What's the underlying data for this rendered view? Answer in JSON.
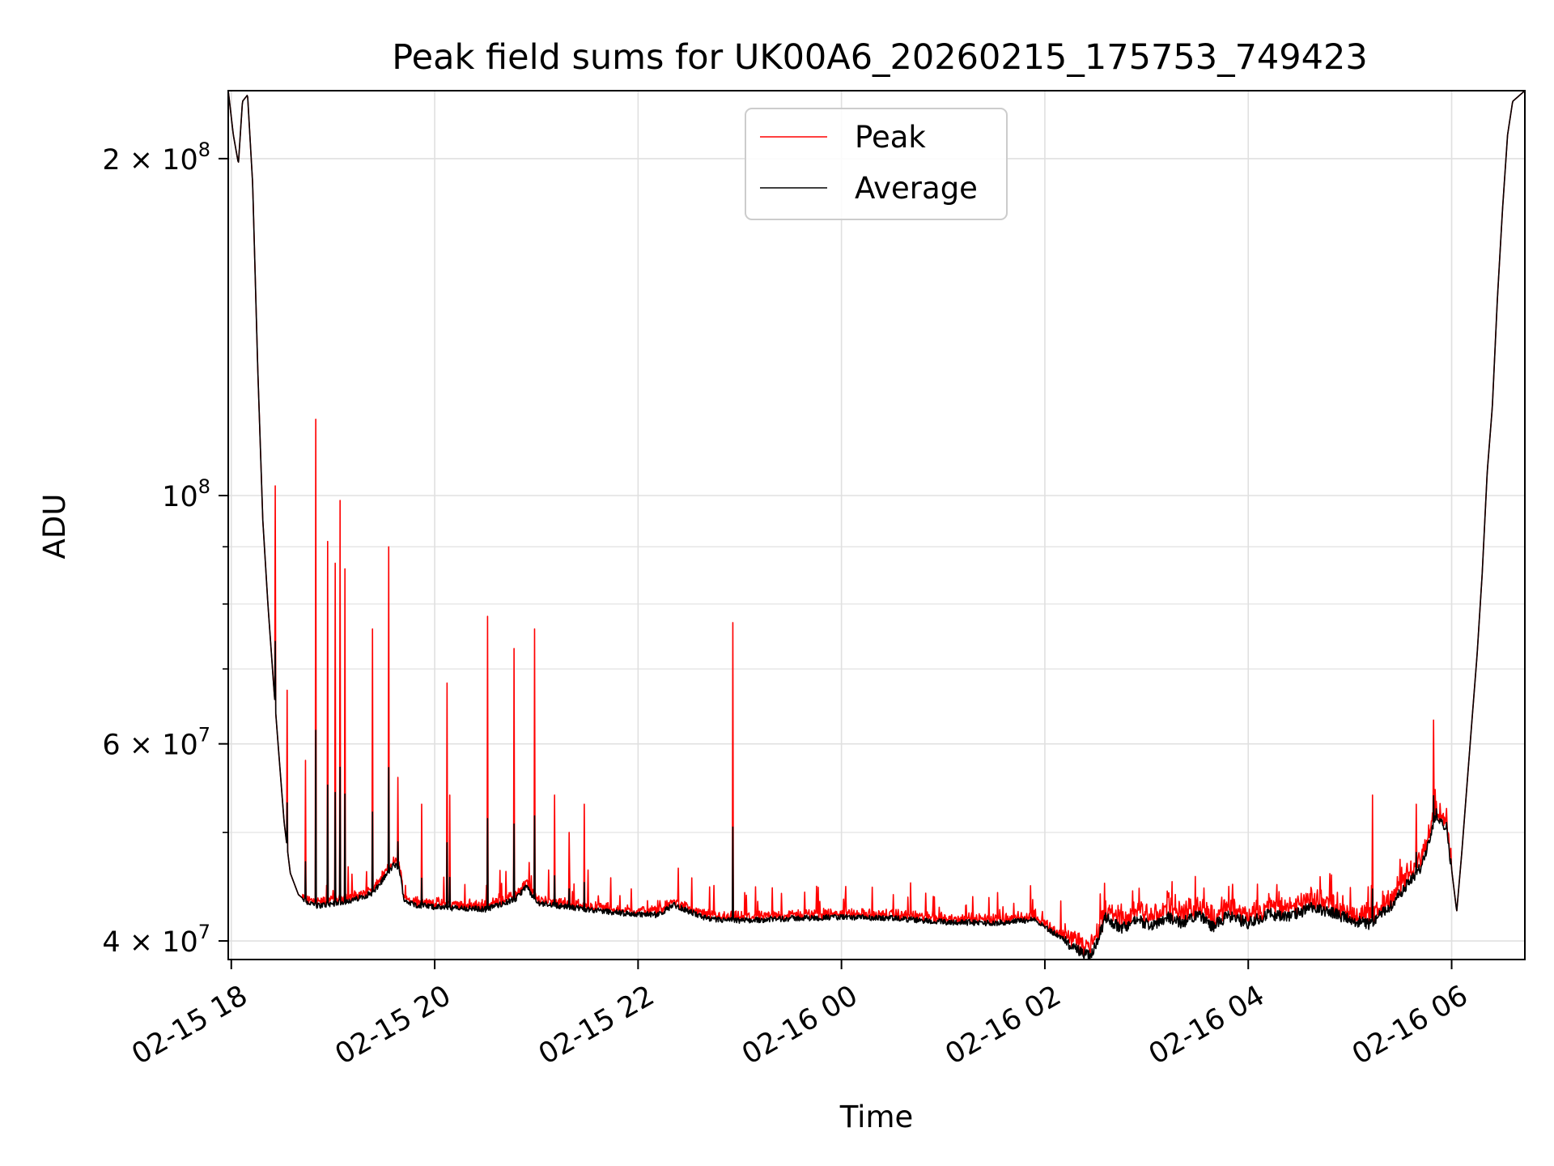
{
  "chart_data": {
    "type": "line",
    "title": "Peak field sums for UK00A6_20260215_175753_749423",
    "xlabel": "Time",
    "ylabel": "ADU",
    "y_scale": "log",
    "xlim": [
      17.97,
      30.72
    ],
    "ylim": [
      38500000,
      230000000
    ],
    "grid": true,
    "legend_position": "upper-center",
    "x_unit_note": "x values are hours of 2026-02-15 (24 = 02-16 00:00)",
    "x_ticks": [
      {
        "value": 18,
        "label": "02-15 18"
      },
      {
        "value": 20,
        "label": "02-15 20"
      },
      {
        "value": 22,
        "label": "02-15 22"
      },
      {
        "value": 24,
        "label": "02-16 00"
      },
      {
        "value": 26,
        "label": "02-16 02"
      },
      {
        "value": 28,
        "label": "02-16 04"
      },
      {
        "value": 30,
        "label": "02-16 06"
      }
    ],
    "y_ticks": [
      {
        "value": 40000000,
        "mantissa": "4",
        "exp": "7"
      },
      {
        "value": 60000000,
        "mantissa": "6",
        "exp": "7"
      },
      {
        "value": 100000000,
        "mantissa": "",
        "exp": "8"
      },
      {
        "value": 200000000,
        "mantissa": "2",
        "exp": "8"
      }
    ],
    "y_minor_ticks": [
      50000000,
      70000000,
      80000000,
      90000000
    ],
    "average_series": {
      "name": "Average",
      "color": "#000000",
      "x": [
        17.97,
        18.02,
        18.07,
        18.11,
        18.16,
        18.21,
        18.26,
        18.31,
        18.36,
        18.42,
        18.46,
        18.52,
        18.58,
        18.66,
        18.75,
        18.85,
        19.0,
        19.2,
        19.4,
        19.5,
        19.6,
        19.65,
        19.7,
        19.8,
        20.0,
        20.2,
        20.5,
        20.8,
        20.9,
        21.0,
        21.3,
        21.6,
        21.9,
        22.2,
        22.35,
        22.5,
        22.7,
        23.0,
        23.5,
        24.0,
        24.5,
        25.0,
        25.5,
        25.9,
        26.2,
        26.3,
        26.45,
        26.6,
        26.75,
        26.9,
        27.05,
        27.2,
        27.35,
        27.5,
        27.65,
        27.8,
        28.0,
        28.2,
        28.4,
        28.6,
        28.8,
        29.0,
        29.2,
        29.4,
        29.55,
        29.7,
        29.85,
        29.95,
        30.05,
        30.1,
        30.15,
        30.2,
        30.25,
        30.3,
        30.35,
        30.4,
        30.45,
        30.5,
        30.55,
        30.6,
        30.72
      ],
      "y": [
        230000000,
        210000000,
        198000000,
        225000000,
        228000000,
        190000000,
        130000000,
        95000000,
        80000000,
        67000000,
        60000000,
        51000000,
        46000000,
        44000000,
        43300000,
        43000000,
        43200000,
        43500000,
        44200000,
        45500000,
        46800000,
        46500000,
        43500000,
        43100000,
        42900000,
        42800000,
        42700000,
        43600000,
        44800000,
        43300000,
        42900000,
        42600000,
        42300000,
        42200000,
        43100000,
        42500000,
        41800000,
        41700000,
        41900000,
        42000000,
        41900000,
        41600000,
        41500000,
        41800000,
        40000000,
        39300000,
        38700000,
        42000000,
        41000000,
        41800000,
        41300000,
        42000000,
        41500000,
        42300000,
        41200000,
        42100000,
        41500000,
        42300000,
        42000000,
        42800000,
        42500000,
        41800000,
        41400000,
        43000000,
        44800000,
        46500000,
        52000000,
        50500000,
        42500000,
        48000000,
        55000000,
        63000000,
        72000000,
        85000000,
        105000000,
        120000000,
        150000000,
        180000000,
        210000000,
        225000000,
        230000000
      ]
    },
    "peak_series": {
      "name": "Peak",
      "color": "#ff0000",
      "offset": 500000,
      "spikes": [
        {
          "x": 18.43,
          "y": 102000000
        },
        {
          "x": 18.55,
          "y": 67000000
        },
        {
          "x": 18.73,
          "y": 58000000
        },
        {
          "x": 18.83,
          "y": 117000000
        },
        {
          "x": 18.95,
          "y": 91000000
        },
        {
          "x": 19.02,
          "y": 87000000
        },
        {
          "x": 19.07,
          "y": 99000000
        },
        {
          "x": 19.12,
          "y": 86000000
        },
        {
          "x": 19.39,
          "y": 76000000
        },
        {
          "x": 19.55,
          "y": 90000000
        },
        {
          "x": 19.64,
          "y": 56000000
        },
        {
          "x": 19.87,
          "y": 53000000
        },
        {
          "x": 20.12,
          "y": 68000000
        },
        {
          "x": 20.15,
          "y": 54000000
        },
        {
          "x": 20.52,
          "y": 78000000
        },
        {
          "x": 20.78,
          "y": 73000000
        },
        {
          "x": 20.98,
          "y": 76000000
        },
        {
          "x": 21.18,
          "y": 54000000
        },
        {
          "x": 21.32,
          "y": 50000000
        },
        {
          "x": 21.47,
          "y": 53000000
        },
        {
          "x": 22.93,
          "y": 77000000
        },
        {
          "x": 29.22,
          "y": 54000000
        },
        {
          "x": 29.65,
          "y": 53000000
        },
        {
          "x": 29.82,
          "y": 63000000
        }
      ]
    },
    "legend": [
      "Peak",
      "Average"
    ]
  }
}
